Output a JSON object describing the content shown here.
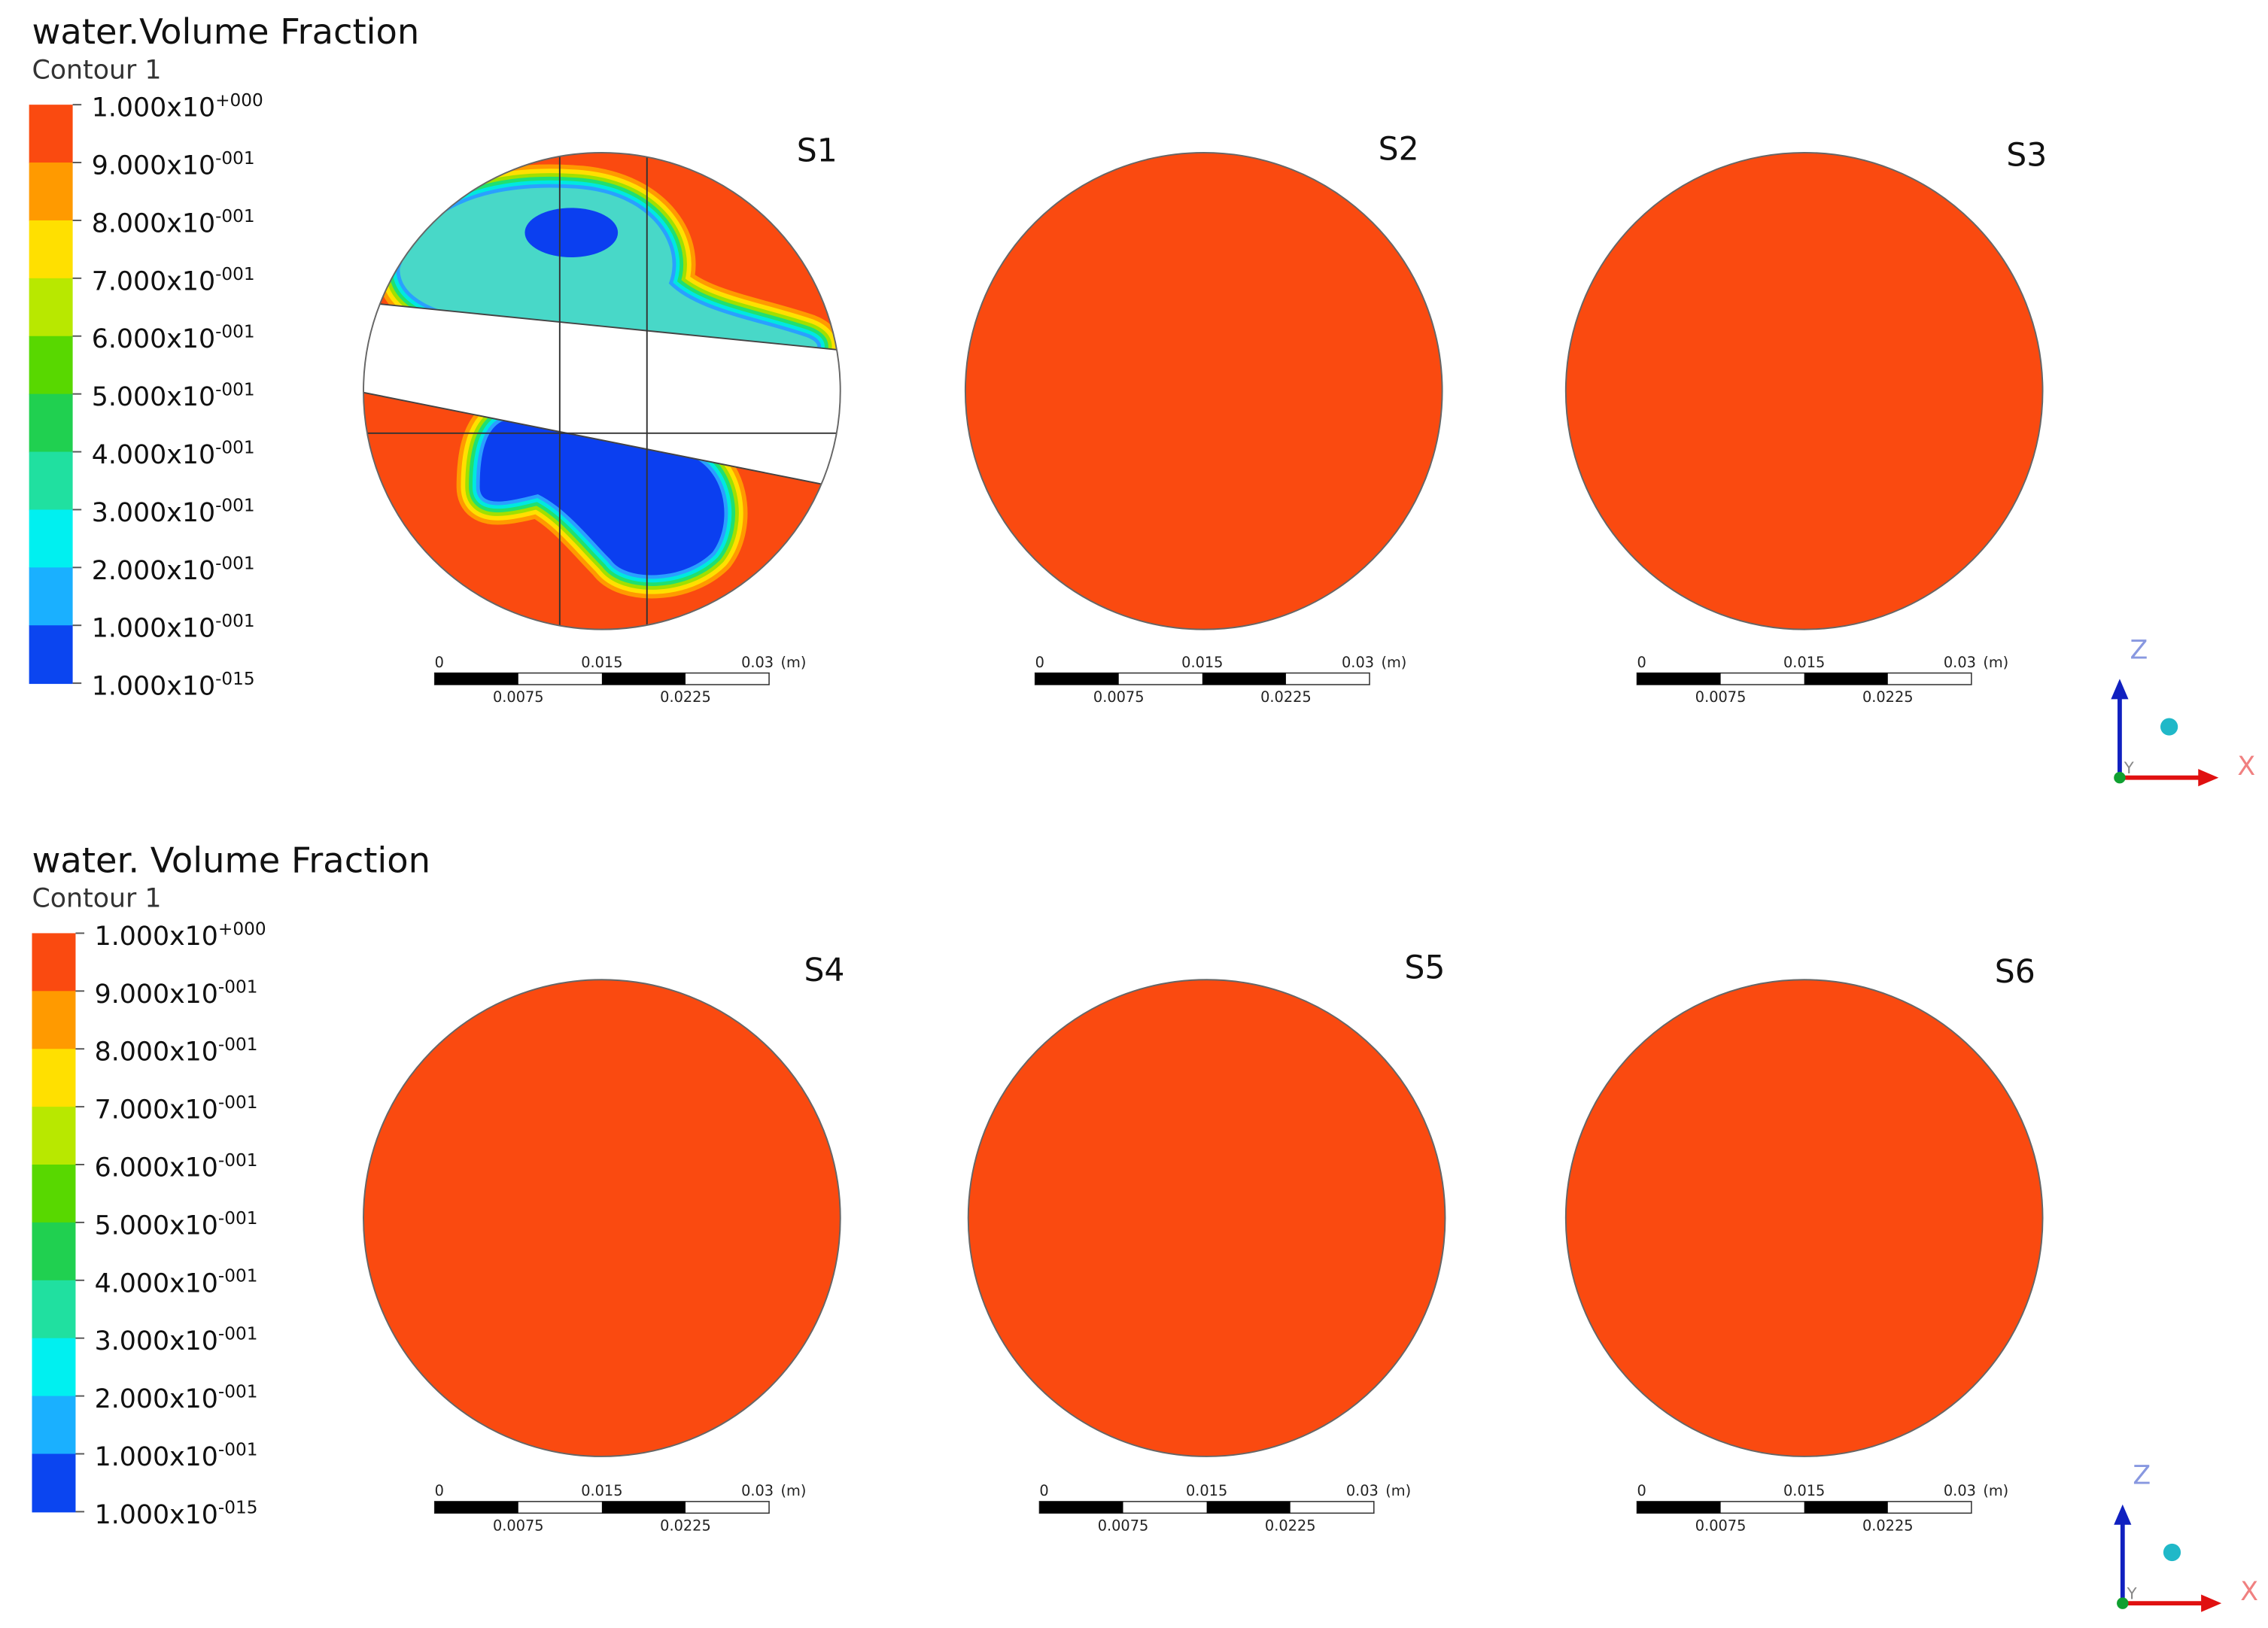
{
  "panels": [
    {
      "title": "water.Volume Fraction",
      "subtitle": "Contour 1",
      "legend": [
        {
          "base": "1.000x10",
          "exp": "+000"
        },
        {
          "base": "9.000x10",
          "exp": "-001"
        },
        {
          "base": "8.000x10",
          "exp": "-001"
        },
        {
          "base": "7.000x10",
          "exp": "-001"
        },
        {
          "base": "6.000x10",
          "exp": "-001"
        },
        {
          "base": "5.000x10",
          "exp": "-001"
        },
        {
          "base": "4.000x10",
          "exp": "-001"
        },
        {
          "base": "3.000x10",
          "exp": "-001"
        },
        {
          "base": "2.000x10",
          "exp": "-001"
        },
        {
          "base": "1.000x10",
          "exp": "-001"
        },
        {
          "base": "1.000x10",
          "exp": "-015"
        }
      ],
      "sections": [
        {
          "label": "S1",
          "scale_top": [
            "0",
            "0.015",
            "0.03",
            "(m)"
          ],
          "scale_bottom": [
            "0.0075",
            "0.0225"
          ]
        },
        {
          "label": "S2",
          "scale_top": [
            "0",
            "0.015",
            "0.03",
            "(m)"
          ],
          "scale_bottom": [
            "0.0075",
            "0.0225"
          ]
        },
        {
          "label": "S3",
          "scale_top": [
            "0",
            "0.015",
            "0.03",
            "(m)"
          ],
          "scale_bottom": [
            "0.0075",
            "0.0225"
          ]
        }
      ],
      "axes": [
        "Z",
        "Y",
        "X"
      ]
    },
    {
      "title": "water. Volume Fraction",
      "subtitle": "Contour 1",
      "legend": [
        {
          "base": "1.000x10",
          "exp": "+000"
        },
        {
          "base": "9.000x10",
          "exp": "-001"
        },
        {
          "base": "8.000x10",
          "exp": "-001"
        },
        {
          "base": "7.000x10",
          "exp": "-001"
        },
        {
          "base": "6.000x10",
          "exp": "-001"
        },
        {
          "base": "5.000x10",
          "exp": "-001"
        },
        {
          "base": "4.000x10",
          "exp": "-001"
        },
        {
          "base": "3.000x10",
          "exp": "-001"
        },
        {
          "base": "2.000x10",
          "exp": "-001"
        },
        {
          "base": "1.000x10",
          "exp": "-001"
        },
        {
          "base": "1.000x10",
          "exp": "-015"
        }
      ],
      "sections": [
        {
          "label": "S4",
          "scale_top": [
            "0",
            "0.015",
            "0.03",
            "(m)"
          ],
          "scale_bottom": [
            "0.0075",
            "0.0225"
          ]
        },
        {
          "label": "S5",
          "scale_top": [
            "0",
            "0.015",
            "0.03",
            "(m)"
          ],
          "scale_bottom": [
            "0.0075",
            "0.0225"
          ]
        },
        {
          "label": "S6",
          "scale_top": [
            "0",
            "0.015",
            "0.03",
            "(m)"
          ],
          "scale_bottom": [
            "0.0075",
            "0.0225"
          ]
        }
      ],
      "axes": [
        "Z",
        "Y",
        "X"
      ]
    }
  ]
}
